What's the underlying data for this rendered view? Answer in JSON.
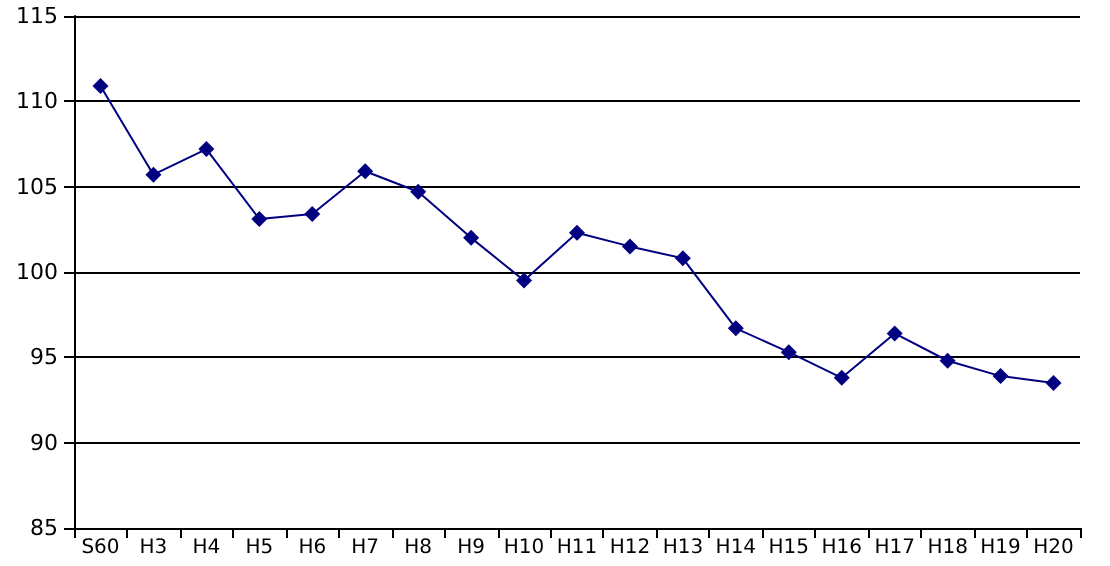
{
  "chart_data": {
    "type": "line",
    "categories": [
      "S60",
      "H3",
      "H4",
      "H5",
      "H6",
      "H7",
      "H8",
      "H9",
      "H10",
      "H11",
      "H12",
      "H13",
      "H14",
      "H15",
      "H16",
      "H17",
      "H18",
      "H19",
      "H20"
    ],
    "series": [
      {
        "color": "#000080",
        "values": [
          110.9,
          105.7,
          107.2,
          103.1,
          103.4,
          105.9,
          104.7,
          102.0,
          99.5,
          102.3,
          101.5,
          100.8,
          96.7,
          95.3,
          93.8,
          96.4,
          94.8,
          93.9,
          93.5
        ]
      }
    ],
    "ylim": [
      85,
      115
    ],
    "yticks": [
      85,
      90,
      95,
      100,
      105,
      110,
      115
    ],
    "grid": "y",
    "marker": "diamond",
    "line_style": "solid"
  }
}
